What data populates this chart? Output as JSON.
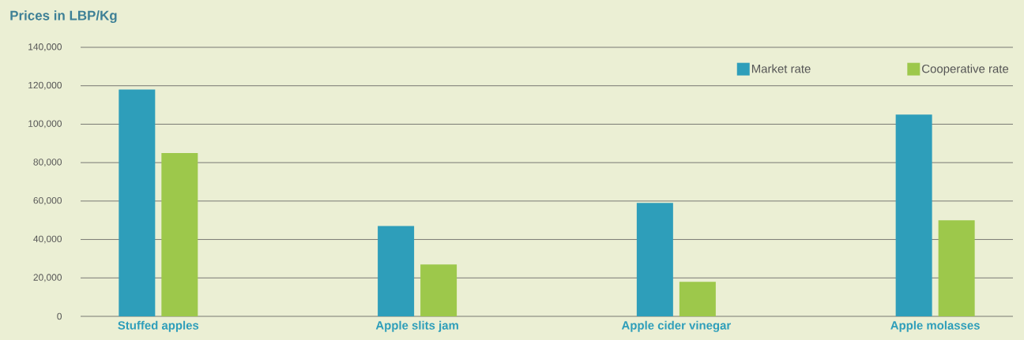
{
  "chart_data": {
    "type": "bar",
    "ylabel": "Prices in LBP/Kg",
    "categories": [
      "Stuffed apples",
      "Apple slits jam",
      "Apple cider vinegar",
      "Apple molasses"
    ],
    "series": [
      {
        "name": "Market rate",
        "color": "#2e9eba",
        "values": [
          118000,
          47000,
          59000,
          105000
        ]
      },
      {
        "name": "Cooperative rate",
        "color": "#9dc84b",
        "values": [
          85000,
          27000,
          18000,
          50000
        ]
      }
    ],
    "ylim": [
      0,
      140000
    ],
    "yticks": [
      {
        "value": 0,
        "label": "0"
      },
      {
        "value": 20000,
        "label": "20,000"
      },
      {
        "value": 40000,
        "label": "40,000"
      },
      {
        "value": 60000,
        "label": "60,000"
      },
      {
        "value": 80000,
        "label": "80,000"
      },
      {
        "value": 100000,
        "label": "100,000"
      },
      {
        "value": 120000,
        "label": "120,000"
      },
      {
        "value": 140000,
        "label": "140,000"
      }
    ],
    "grid": "y",
    "legend": "top right"
  }
}
